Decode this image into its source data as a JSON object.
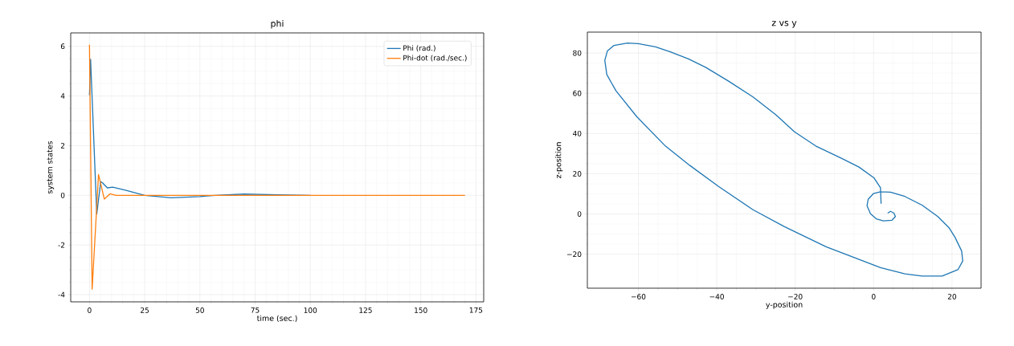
{
  "chart_data": [
    {
      "type": "line",
      "title": "phi",
      "xlabel": "time (sec.)",
      "ylabel": "system states",
      "xlim": [
        -8.5,
        178.5
      ],
      "ylim": [
        -4.29,
        6.54
      ],
      "xticks": [
        0,
        25,
        50,
        75,
        100,
        125,
        150,
        175
      ],
      "yticks": [
        -4,
        -2,
        0,
        2,
        4,
        6
      ],
      "grid": true,
      "legend": "top right",
      "series": [
        {
          "name": "Phi (rad.)",
          "color": "#1f77b4",
          "x": [
            0,
            0.5,
            3.3,
            5.1,
            5.9,
            8.1,
            10.5,
            16.6,
            25,
            37,
            50,
            57,
            70,
            85,
            100
          ],
          "values": [
            4.03,
            5.48,
            -0.75,
            0.55,
            0.5,
            0.3,
            0.33,
            0.2,
            0.0,
            -0.1,
            -0.05,
            0.0,
            0.05,
            0.02,
            0.0
          ]
        },
        {
          "name": "Phi-dot (rad./sec.)",
          "color": "#ff7f0e",
          "x": [
            0,
            1.2,
            4.1,
            6.7,
            9.3,
            12,
            170
          ],
          "values": [
            6.06,
            -3.78,
            0.84,
            -0.15,
            0.06,
            0.0,
            0.0
          ]
        }
      ]
    },
    {
      "type": "line",
      "title": "z vs y",
      "xlabel": "y-position",
      "ylabel": "z-position",
      "xlim": [
        -73.0,
        27.4
      ],
      "ylim": [
        -36.9,
        90.4
      ],
      "xticks": [
        {
          "value": -60,
          "label": "−60"
        },
        {
          "value": -40,
          "label": "−40"
        },
        {
          "value": -20,
          "label": "−20"
        },
        {
          "value": 0,
          "label": "0"
        },
        {
          "value": 20,
          "label": "20"
        }
      ],
      "yticks": [
        {
          "value": -20,
          "label": "−20"
        },
        {
          "value": 0,
          "label": "0"
        },
        {
          "value": 20,
          "label": "20"
        },
        {
          "value": 40,
          "label": "40"
        },
        {
          "value": 60,
          "label": "60"
        },
        {
          "value": 80,
          "label": "80"
        }
      ],
      "grid": true,
      "series": [
        {
          "color": "#1f77b4",
          "x": [
            1.9,
            1.75,
            0.07,
            -3.73,
            -8.11,
            -14.69,
            -20.17,
            -24.92,
            -30.77,
            -36.98,
            -42.83,
            -47.21,
            -51.96,
            -55.62,
            -60.0,
            -62.78,
            -66.21,
            -67.9,
            -68.55,
            -68.04,
            -65.7,
            -60.37,
            -53.06,
            -46.85,
            -39.54,
            -30.77,
            -22.73,
            -12.13,
            1.75,
            7.97,
            12.35,
            17.47,
            21.49,
            22.73,
            22.44,
            20.76,
            19.29,
            16.37,
            12.35,
            7.97,
            4.31,
            1.75,
            -0.07,
            -1.39,
            -1.68,
            -0.8,
            0.66,
            2.48,
            4.68,
            5.55,
            5.19,
            4.31,
            3.58
          ],
          "values": [
            5.1,
            13.0,
            18.0,
            23.3,
            27.6,
            33.7,
            40.8,
            49.3,
            58.2,
            66.0,
            72.9,
            77.1,
            80.7,
            83.1,
            84.7,
            85.0,
            83.8,
            81.0,
            76.4,
            69.3,
            61.2,
            48.3,
            33.7,
            24.1,
            13.7,
            2.1,
            -6.3,
            -16.3,
            -26.7,
            -29.8,
            -30.9,
            -30.9,
            -27.7,
            -23.4,
            -18.4,
            -11.6,
            -7.0,
            -1.3,
            4.4,
            8.7,
            10.8,
            11.0,
            10.1,
            7.3,
            4.1,
            0.1,
            -2.4,
            -3.4,
            -3.1,
            -1.3,
            0.4,
            1.3,
            0.4
          ]
        }
      ]
    }
  ]
}
